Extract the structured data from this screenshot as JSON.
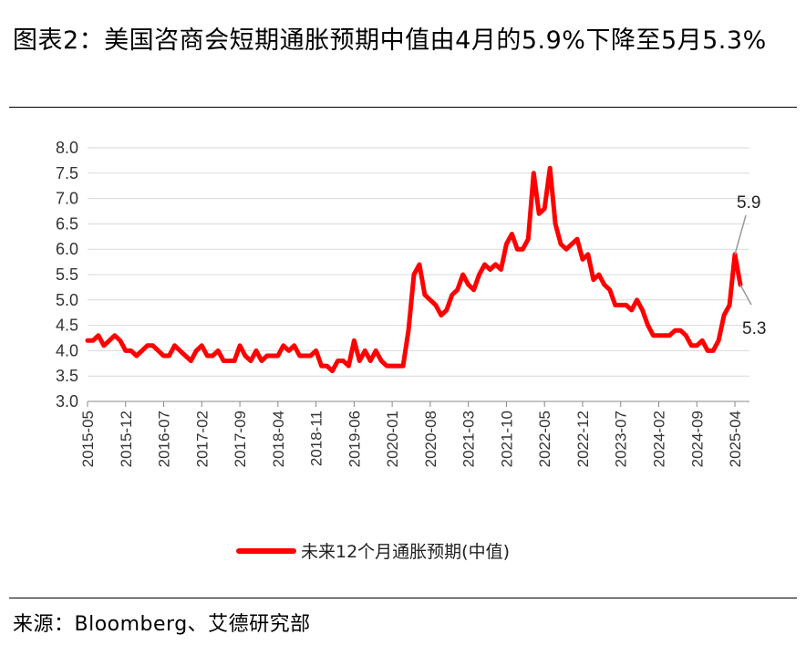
{
  "header": {
    "title": "图表2：美国咨商会短期通胀预期中值由4月的5.9%下降至5月5.3%"
  },
  "footer": {
    "source": "来源：Bloomberg、艾德研究部"
  },
  "chart_data": {
    "type": "line",
    "title": "",
    "xlabel": "",
    "ylabel": "",
    "ylim": [
      3.0,
      8.0
    ],
    "yticks": [
      "3.0",
      "3.5",
      "4.0",
      "4.5",
      "5.0",
      "5.5",
      "6.0",
      "6.5",
      "7.0",
      "7.5",
      "8.0"
    ],
    "xticks": [
      "2015-05",
      "2015-12",
      "2016-07",
      "2017-02",
      "2017-09",
      "2018-04",
      "2018-11",
      "2019-06",
      "2020-01",
      "2020-08",
      "2021-03",
      "2021-10",
      "2022-05",
      "2022-12",
      "2023-07",
      "2024-02",
      "2024-09",
      "2025-04"
    ],
    "grid": true,
    "legend_position": "bottom",
    "line_color": "#ff0000",
    "annotations": [
      {
        "label": "5.9",
        "date": "2025-04",
        "value": 5.9
      },
      {
        "label": "5.3",
        "date": "2025-05",
        "value": 5.3
      }
    ],
    "series": [
      {
        "name": "未来12个月通胀预期(中值)",
        "x": [
          "2015-05",
          "2015-06",
          "2015-07",
          "2015-08",
          "2015-09",
          "2015-10",
          "2015-11",
          "2015-12",
          "2016-01",
          "2016-02",
          "2016-03",
          "2016-04",
          "2016-05",
          "2016-06",
          "2016-07",
          "2016-08",
          "2016-09",
          "2016-10",
          "2016-11",
          "2016-12",
          "2017-01",
          "2017-02",
          "2017-03",
          "2017-04",
          "2017-05",
          "2017-06",
          "2017-07",
          "2017-08",
          "2017-09",
          "2017-10",
          "2017-11",
          "2017-12",
          "2018-01",
          "2018-02",
          "2018-03",
          "2018-04",
          "2018-05",
          "2018-06",
          "2018-07",
          "2018-08",
          "2018-09",
          "2018-10",
          "2018-11",
          "2018-12",
          "2019-01",
          "2019-02",
          "2019-03",
          "2019-04",
          "2019-05",
          "2019-06",
          "2019-07",
          "2019-08",
          "2019-09",
          "2019-10",
          "2019-11",
          "2019-12",
          "2020-01",
          "2020-02",
          "2020-03",
          "2020-04",
          "2020-05",
          "2020-06",
          "2020-07",
          "2020-08",
          "2020-09",
          "2020-10",
          "2020-11",
          "2020-12",
          "2021-01",
          "2021-02",
          "2021-03",
          "2021-04",
          "2021-05",
          "2021-06",
          "2021-07",
          "2021-08",
          "2021-09",
          "2021-10",
          "2021-11",
          "2021-12",
          "2022-01",
          "2022-02",
          "2022-03",
          "2022-04",
          "2022-05",
          "2022-06",
          "2022-07",
          "2022-08",
          "2022-09",
          "2022-10",
          "2022-11",
          "2022-12",
          "2023-01",
          "2023-02",
          "2023-03",
          "2023-04",
          "2023-05",
          "2023-06",
          "2023-07",
          "2023-08",
          "2023-09",
          "2023-10",
          "2023-11",
          "2023-12",
          "2024-01",
          "2024-02",
          "2024-03",
          "2024-04",
          "2024-05",
          "2024-06",
          "2024-07",
          "2024-08",
          "2024-09",
          "2024-10",
          "2024-11",
          "2024-12",
          "2025-01",
          "2025-02",
          "2025-03",
          "2025-04",
          "2025-05"
        ],
        "values": [
          4.2,
          4.2,
          4.3,
          4.1,
          4.2,
          4.3,
          4.2,
          4.0,
          4.0,
          3.9,
          4.0,
          4.1,
          4.1,
          4.0,
          3.9,
          3.9,
          4.1,
          4.0,
          3.9,
          3.8,
          4.0,
          4.1,
          3.9,
          3.9,
          4.0,
          3.8,
          3.8,
          3.8,
          4.1,
          3.9,
          3.8,
          4.0,
          3.8,
          3.9,
          3.9,
          3.9,
          4.1,
          4.0,
          4.1,
          3.9,
          3.9,
          3.9,
          4.0,
          3.7,
          3.7,
          3.6,
          3.8,
          3.8,
          3.7,
          4.2,
          3.8,
          4.0,
          3.8,
          4.0,
          3.8,
          3.7,
          3.7,
          3.7,
          3.7,
          4.4,
          5.5,
          5.7,
          5.1,
          5.0,
          4.9,
          4.7,
          4.8,
          5.1,
          5.2,
          5.5,
          5.3,
          5.2,
          5.5,
          5.7,
          5.6,
          5.7,
          5.6,
          6.1,
          6.3,
          6.0,
          6.0,
          6.2,
          7.5,
          6.7,
          6.8,
          7.6,
          6.5,
          6.1,
          6.0,
          6.1,
          6.2,
          5.8,
          5.9,
          5.4,
          5.5,
          5.3,
          5.2,
          4.9,
          4.9,
          4.9,
          4.8,
          5.0,
          4.8,
          4.5,
          4.3,
          4.3,
          4.3,
          4.3,
          4.4,
          4.4,
          4.3,
          4.1,
          4.1,
          4.2,
          4.0,
          4.0,
          4.2,
          4.7,
          4.9,
          5.9,
          5.3
        ]
      }
    ]
  }
}
